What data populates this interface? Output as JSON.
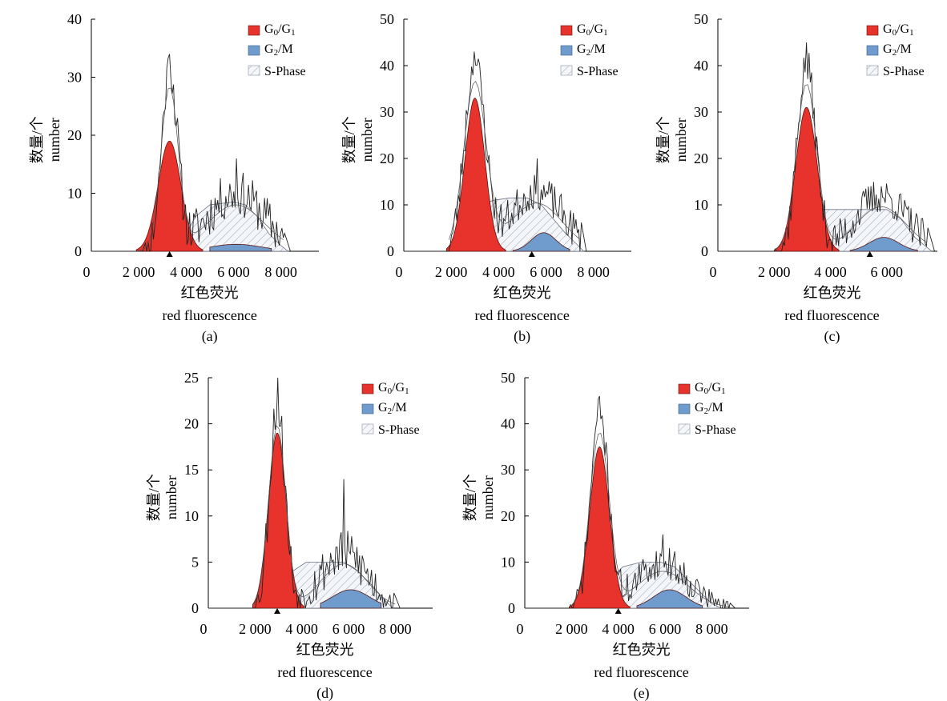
{
  "figure": {
    "xlabel_cn": "红色荧光",
    "xlabel_en": "red fluorescence",
    "ylabel_cn": "数量/个",
    "ylabel_en": "number",
    "legend": {
      "g0g1": {
        "main": "G",
        "sub1": "0",
        "mid": "/G",
        "sub2": "1"
      },
      "g2m": {
        "main": "G",
        "sub1": "2",
        "rest": "/M"
      },
      "sphase": "S-Phase"
    },
    "colors": {
      "g0g1": "#e8322c",
      "g2m": "#6f9ccd",
      "sphase_hatch": "#9aa4b6",
      "trace": "#222222"
    }
  },
  "chart_data": [
    {
      "panel": "(a)",
      "type": "area",
      "xlabel": "红色荧光 red fluorescence",
      "ylabel": "数量/个 number",
      "xlim": [
        0,
        9600
      ],
      "ylim": [
        0,
        40
      ],
      "xticks": [
        0,
        2000,
        4000,
        6000,
        8000
      ],
      "xtick_labels": [
        "0",
        "2 000",
        "4 000",
        "6 000",
        "8 000"
      ],
      "yticks": [
        0,
        10,
        20,
        30,
        40
      ],
      "marker_x": 3300,
      "series": [
        {
          "name": "G0/G1",
          "kind": "gauss",
          "mu": 3300,
          "sigma": 480,
          "amp": 19,
          "xmin": 1900,
          "xmax": 4700
        },
        {
          "name": "G2/M",
          "kind": "gauss",
          "mu": 6100,
          "sigma": 1100,
          "amp": 1.2,
          "xmin": 5000,
          "xmax": 7600
        },
        {
          "name": "S-Phase",
          "kind": "poly",
          "points": [
            [
              2400,
              0
            ],
            [
              3300,
              1
            ],
            [
              4000,
              3
            ],
            [
              4400,
              6
            ],
            [
              5000,
              8
            ],
            [
              6000,
              8.5
            ],
            [
              6500,
              8
            ],
            [
              7000,
              6
            ],
            [
              7500,
              3
            ],
            [
              8000,
              1
            ],
            [
              8300,
              0
            ]
          ]
        }
      ],
      "trace": {
        "main_amp": 31,
        "main_sigma": 330,
        "second_mu": 6100,
        "second_sigma": 1200,
        "second_amp": 10,
        "extent": [
          2000,
          8200
        ],
        "seed": 11,
        "noise": 4,
        "peak": 34,
        "peak2": 16
      }
    },
    {
      "panel": "(b)",
      "type": "area",
      "xlabel": "红色荧光 red fluorescence",
      "ylabel": "数量/个 number",
      "xlim": [
        0,
        9600
      ],
      "ylim": [
        0,
        50
      ],
      "xticks": [
        0,
        2000,
        4000,
        6000,
        8000
      ],
      "xtick_labels": [
        "0",
        "2 000",
        "4 000",
        "6 000",
        "8 000"
      ],
      "yticks": [
        0,
        10,
        20,
        30,
        40,
        50
      ],
      "marker_x": 5400,
      "series": [
        {
          "name": "G0/G1",
          "kind": "gauss",
          "mu": 3000,
          "sigma": 420,
          "amp": 33,
          "xmin": 1800,
          "xmax": 4300
        },
        {
          "name": "G2/M",
          "kind": "gauss",
          "mu": 5900,
          "sigma": 520,
          "amp": 4,
          "xmin": 4600,
          "xmax": 7000
        },
        {
          "name": "S-Phase",
          "kind": "poly",
          "points": [
            [
              2000,
              0
            ],
            [
              2800,
              6
            ],
            [
              3200,
              10
            ],
            [
              3800,
              11
            ],
            [
              4500,
              11.5
            ],
            [
              5200,
              11.5
            ],
            [
              5800,
              10
            ],
            [
              6300,
              7
            ],
            [
              6800,
              4
            ],
            [
              7200,
              2
            ],
            [
              7600,
              0
            ]
          ]
        }
      ],
      "trace": {
        "main_amp": 40,
        "main_sigma": 430,
        "second_mu": 5600,
        "second_sigma": 1100,
        "second_amp": 13,
        "extent": [
          1900,
          7500
        ],
        "seed": 23,
        "noise": 4,
        "peak": 43,
        "peak2": 20
      }
    },
    {
      "panel": "(c)",
      "type": "area",
      "xlabel": "红色荧光 red fluorescence",
      "ylabel": "数量/个 number",
      "xlim": [
        0,
        7800
      ],
      "ylim": [
        0,
        50
      ],
      "xticks": [
        0,
        2000,
        4000,
        6000
      ],
      "xtick_labels": [
        "0",
        "2 000",
        "4 000",
        "6 000"
      ],
      "yticks": [
        0,
        10,
        20,
        30,
        40,
        50
      ],
      "marker_x": 5400,
      "series": [
        {
          "name": "G0/G1",
          "kind": "gauss",
          "mu": 3150,
          "sigma": 380,
          "amp": 31,
          "xmin": 2000,
          "xmax": 4300
        },
        {
          "name": "G2/M",
          "kind": "gauss",
          "mu": 5900,
          "sigma": 520,
          "amp": 3,
          "xmin": 4700,
          "xmax": 7100
        },
        {
          "name": "S-Phase",
          "kind": "poly",
          "points": [
            [
              2200,
              0
            ],
            [
              3000,
              5
            ],
            [
              3500,
              9
            ],
            [
              4200,
              9
            ],
            [
              5000,
              9
            ],
            [
              6000,
              9
            ],
            [
              6500,
              7
            ],
            [
              7000,
              3
            ],
            [
              7400,
              1
            ],
            [
              7600,
              0
            ]
          ]
        }
      ],
      "trace": {
        "main_amp": 40,
        "main_sigma": 330,
        "second_mu": 5800,
        "second_sigma": 900,
        "second_amp": 12,
        "extent": [
          2000,
          7500
        ],
        "seed": 37,
        "noise": 4,
        "peak": 45,
        "peak2": 14
      }
    },
    {
      "panel": "(d)",
      "type": "area",
      "xlabel": "红色荧光 red fluorescence",
      "ylabel": "数量/个 number",
      "xlim": [
        0,
        9600
      ],
      "ylim": [
        0,
        25
      ],
      "xticks": [
        0,
        2000,
        4000,
        6000,
        8000
      ],
      "xtick_labels": [
        "0",
        "2 000",
        "4 000",
        "6 000",
        "8 000"
      ],
      "yticks": [
        0,
        5,
        10,
        15,
        20,
        25
      ],
      "marker_x": 2950,
      "series": [
        {
          "name": "G0/G1",
          "kind": "gauss",
          "mu": 2950,
          "sigma": 380,
          "amp": 19,
          "xmin": 1900,
          "xmax": 4100
        },
        {
          "name": "G2/M",
          "kind": "gauss",
          "mu": 6100,
          "sigma": 800,
          "amp": 2,
          "xmin": 4800,
          "xmax": 7400
        },
        {
          "name": "S-Phase",
          "kind": "poly",
          "points": [
            [
              2200,
              0
            ],
            [
              3000,
              2
            ],
            [
              3600,
              4
            ],
            [
              4200,
              5
            ],
            [
              5000,
              5
            ],
            [
              5800,
              5
            ],
            [
              6400,
              4
            ],
            [
              7000,
              2.5
            ],
            [
              7500,
              1
            ],
            [
              7900,
              0
            ]
          ]
        }
      ],
      "trace": {
        "main_amp": 22,
        "main_sigma": 330,
        "second_mu": 5800,
        "second_sigma": 1000,
        "second_amp": 6,
        "extent": [
          1900,
          8000
        ],
        "seed": 53,
        "noise": 2.5,
        "peak": 25,
        "peak2": 14
      }
    },
    {
      "panel": "(e)",
      "type": "area",
      "xlabel": "红色荧光 red fluorescence",
      "ylabel": "数量/个 number",
      "xlim": [
        0,
        9600
      ],
      "ylim": [
        0,
        50
      ],
      "xticks": [
        0,
        2000,
        4000,
        6000,
        8000
      ],
      "xtick_labels": [
        "0",
        "2 000",
        "4 000",
        "6 000",
        "8 000"
      ],
      "yticks": [
        0,
        10,
        20,
        30,
        40,
        50
      ],
      "marker_x": 4000,
      "series": [
        {
          "name": "G0/G1",
          "kind": "gauss",
          "mu": 3200,
          "sigma": 420,
          "amp": 35,
          "xmin": 1900,
          "xmax": 4500
        },
        {
          "name": "G2/M",
          "kind": "gauss",
          "mu": 6200,
          "sigma": 700,
          "amp": 4,
          "xmin": 4800,
          "xmax": 7600
        },
        {
          "name": "S-Phase",
          "kind": "poly",
          "points": [
            [
              2000,
              0
            ],
            [
              3000,
              3
            ],
            [
              3600,
              6
            ],
            [
              4200,
              9
            ],
            [
              5000,
              10
            ],
            [
              5800,
              10
            ],
            [
              6400,
              9
            ],
            [
              7000,
              6
            ],
            [
              7600,
              3
            ],
            [
              8000,
              1
            ],
            [
              8400,
              0
            ]
          ]
        }
      ],
      "trace": {
        "main_amp": 42,
        "main_sigma": 380,
        "second_mu": 5900,
        "second_sigma": 1100,
        "second_amp": 10,
        "extent": [
          1900,
          8800
        ],
        "seed": 71,
        "noise": 3.5,
        "peak": 46,
        "peak2": 16
      }
    }
  ]
}
